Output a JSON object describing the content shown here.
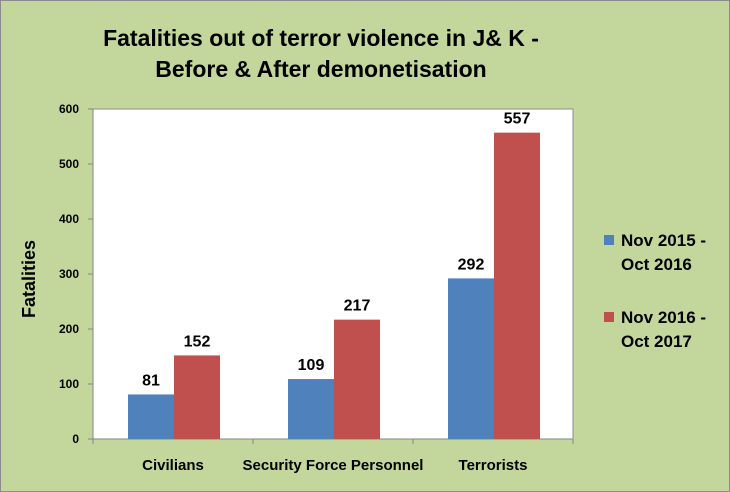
{
  "chart_data": {
    "type": "bar",
    "title": [
      "Fatalities out of terror violence in J& K -",
      "Before & After demonetisation"
    ],
    "ylabel": "Fatalities",
    "xlabel": "",
    "categories": [
      "Civilians",
      "Security Force Personnel",
      "Terrorists"
    ],
    "series": [
      {
        "name": [
          "Nov 2015 -",
          "Oct 2016"
        ],
        "values": [
          81,
          109,
          292
        ],
        "color": "#4f81bd"
      },
      {
        "name": [
          "Nov 2016 -",
          "Oct 2017"
        ],
        "values": [
          152,
          217,
          557
        ],
        "color": "#c0504d"
      }
    ],
    "ylim": [
      0,
      600
    ],
    "yticks": [
      0,
      100,
      200,
      300,
      400,
      500,
      600
    ],
    "grid": false,
    "legend": "right",
    "plot_background": "#ffffff",
    "background": "#c3d69b"
  }
}
